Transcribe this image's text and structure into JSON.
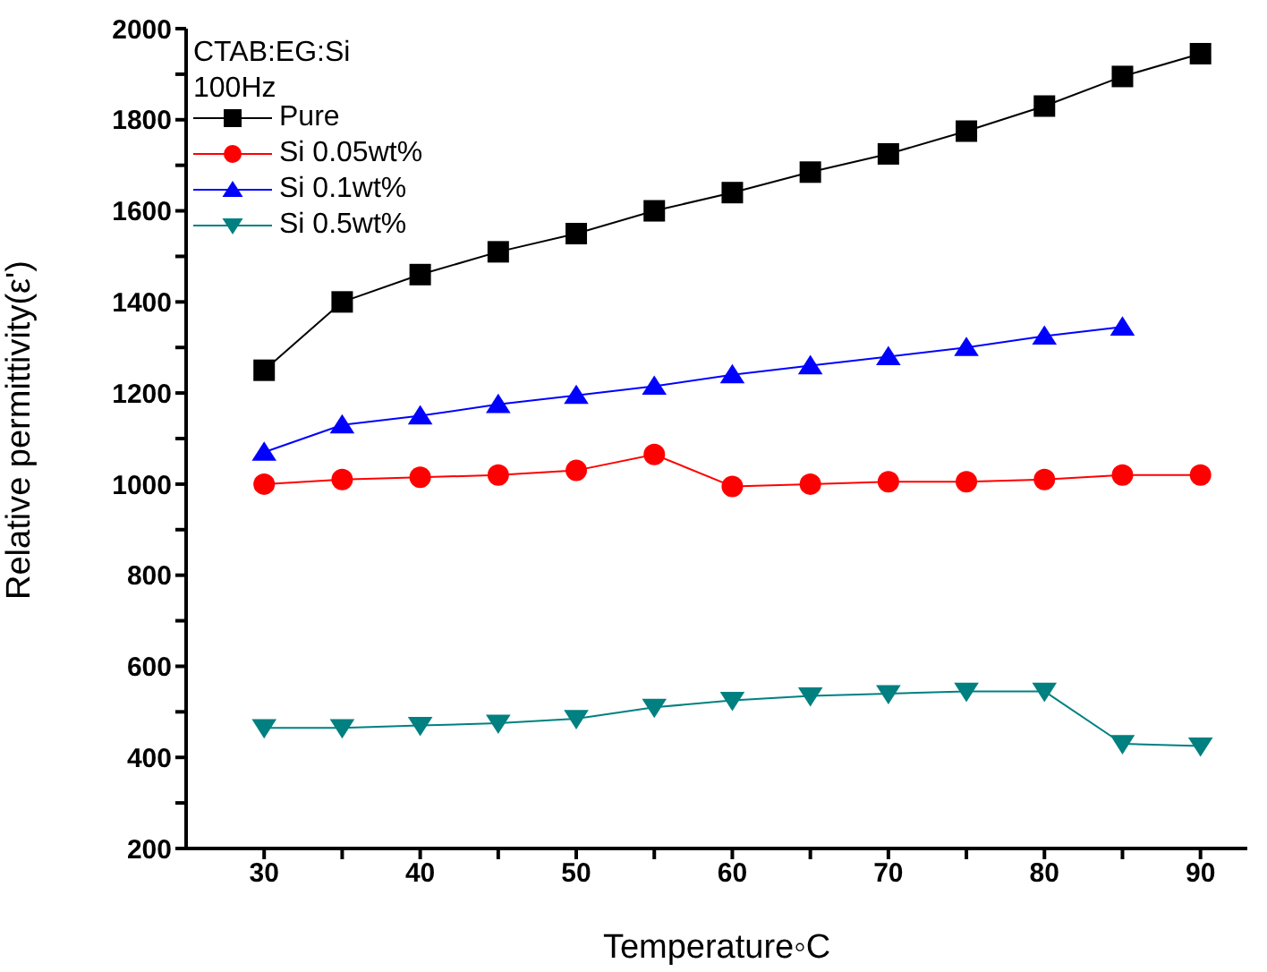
{
  "chart_data": {
    "type": "line",
    "xlabel": "Temperature◦C",
    "ylabel": "Relative permittivity(ε')",
    "annotations": [
      "CTAB:EG:Si",
      "100Hz"
    ],
    "x": [
      30,
      35,
      40,
      45,
      50,
      55,
      60,
      65,
      70,
      75,
      80,
      85,
      90
    ],
    "series": [
      {
        "name": "Pure",
        "color": "#000000",
        "marker": "square",
        "values": [
          1250,
          1400,
          1460,
          1510,
          1550,
          1600,
          1640,
          1685,
          1725,
          1775,
          1830,
          1895,
          1945
        ]
      },
      {
        "name": "Si 0.05wt%",
        "color": "#ff0000",
        "marker": "circle",
        "values": [
          1000,
          1010,
          1015,
          1020,
          1030,
          1065,
          995,
          1000,
          1005,
          1005,
          1010,
          1020,
          1020
        ]
      },
      {
        "name": "Si 0.1wt%",
        "color": "#0000ff",
        "marker": "triangle",
        "values": [
          1070,
          1130,
          1150,
          1175,
          1195,
          1215,
          1240,
          1260,
          1280,
          1300,
          1325,
          1345,
          null
        ]
      },
      {
        "name": "Si 0.5wt%",
        "color": "#008080",
        "marker": "triangle-down",
        "values": [
          465,
          465,
          470,
          475,
          485,
          510,
          525,
          535,
          540,
          545,
          545,
          430,
          425
        ]
      }
    ],
    "xlim": [
      25,
      93
    ],
    "xticks": [
      30,
      {
        "value": 35,
        "label": null
      },
      40,
      {
        "value": 45,
        "label": null
      },
      50,
      {
        "value": 55,
        "label": null
      },
      60,
      {
        "value": 65,
        "label": null
      },
      70,
      {
        "value": 75,
        "label": null
      },
      80,
      {
        "value": 85,
        "label": null
      },
      90
    ],
    "ylim": [
      200,
      2000
    ],
    "yticks": [
      200,
      {
        "value": 300,
        "label": null
      },
      400,
      {
        "value": 500,
        "label": null
      },
      600,
      {
        "value": 700,
        "label": null
      },
      800,
      {
        "value": 900,
        "label": null
      },
      1000,
      {
        "value": 1100,
        "label": null
      },
      1200,
      {
        "value": 1300,
        "label": null
      },
      1400,
      {
        "value": 1500,
        "label": null
      },
      1600,
      {
        "value": 1700,
        "label": null
      },
      1800,
      {
        "value": 1900,
        "label": null
      },
      2000
    ],
    "grid": false,
    "legend": "top left",
    "line_style": "solid"
  }
}
